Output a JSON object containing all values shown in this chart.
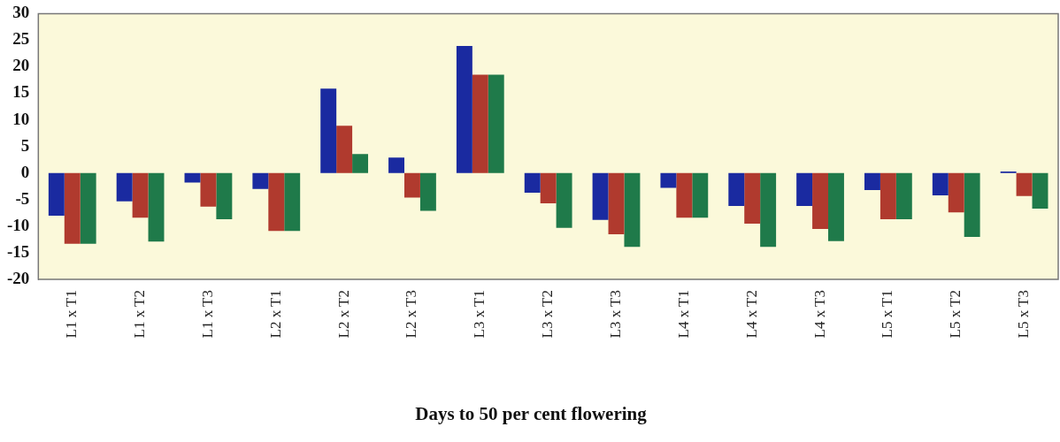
{
  "chart_data": {
    "type": "bar",
    "title": "Days to 50 per cent flowering",
    "categories": [
      "L1 x T1",
      "L1 x T2",
      "L1 x T3",
      "L2 x T1",
      "L2 x T2",
      "L2 x T3",
      "L3 x T1",
      "L3 x T2",
      "L3 x T3",
      "L4 x T1",
      "L4 x T2",
      "L4 x T3",
      "L5 x T1",
      "L5 x T2",
      "L5 x T3"
    ],
    "series": [
      {
        "color": "#1a2aa0",
        "values": [
          -8.0,
          -5.3,
          -1.8,
          -3.0,
          15.9,
          2.9,
          23.9,
          -3.7,
          -8.8,
          -2.8,
          -6.2,
          -6.2,
          -3.2,
          -4.2,
          0.3
        ]
      },
      {
        "color": "#b03a2e",
        "values": [
          -13.3,
          -8.4,
          -6.3,
          -10.9,
          8.9,
          -4.6,
          18.5,
          -5.7,
          -11.5,
          -8.4,
          -9.5,
          -10.5,
          -8.7,
          -7.4,
          -4.3
        ]
      },
      {
        "color": "#1f7a4a",
        "values": [
          -13.3,
          -12.9,
          -8.7,
          -10.9,
          3.6,
          -7.1,
          18.5,
          -10.3,
          -13.9,
          -8.4,
          -13.9,
          -12.8,
          -8.7,
          -12.0,
          -6.7
        ]
      }
    ],
    "ylim": [
      -20,
      30
    ],
    "yticks": [
      -20,
      -15,
      -10,
      -5,
      0,
      5,
      10,
      15,
      20,
      25,
      30
    ],
    "grid": false,
    "legend": false
  }
}
